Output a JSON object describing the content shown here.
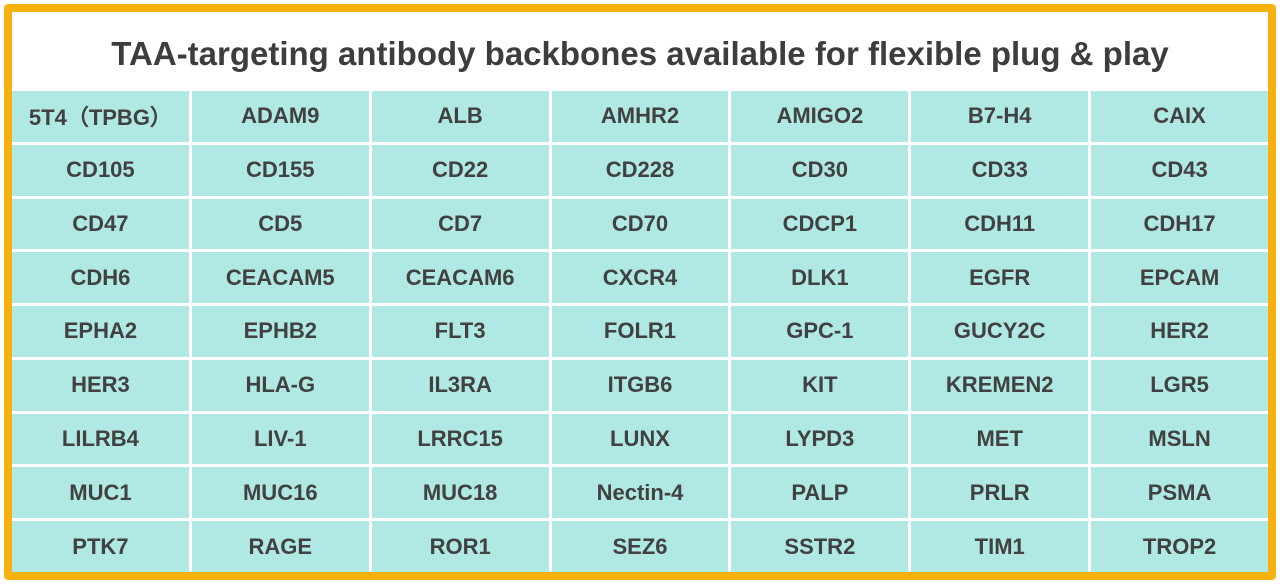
{
  "title": "TAA-targeting antibody backbones available for flexible plug & play",
  "colors": {
    "border": "#f5b20f",
    "cell_background": "#b0e9e4",
    "text": "#414141"
  },
  "targets": [
    "5T4（TPBG）",
    "ADAM9",
    "ALB",
    "AMHR2",
    "AMIGO2",
    "B7-H4",
    "CAIX",
    "CD105",
    "CD155",
    "CD22",
    "CD228",
    "CD30",
    "CD33",
    "CD43",
    "CD47",
    "CD5",
    "CD7",
    "CD70",
    "CDCP1",
    "CDH11",
    "CDH17",
    "CDH6",
    "CEACAM5",
    "CEACAM6",
    "CXCR4",
    "DLK1",
    "EGFR",
    "EPCAM",
    "EPHA2",
    "EPHB2",
    "FLT3",
    "FOLR1",
    "GPC-1",
    "GUCY2C",
    "HER2",
    "HER3",
    "HLA-G",
    "IL3RA",
    "ITGB6",
    "KIT",
    "KREMEN2",
    "LGR5",
    "LILRB4",
    "LIV-1",
    "LRRC15",
    "LUNX",
    "LYPD3",
    "MET",
    "MSLN",
    "MUC1",
    "MUC16",
    "MUC18",
    "Nectin-4",
    "PALP",
    "PRLR",
    "PSMA",
    "PTK7",
    "RAGE",
    "ROR1",
    "SEZ6",
    "SSTR2",
    "TIM1",
    "TROP2"
  ]
}
